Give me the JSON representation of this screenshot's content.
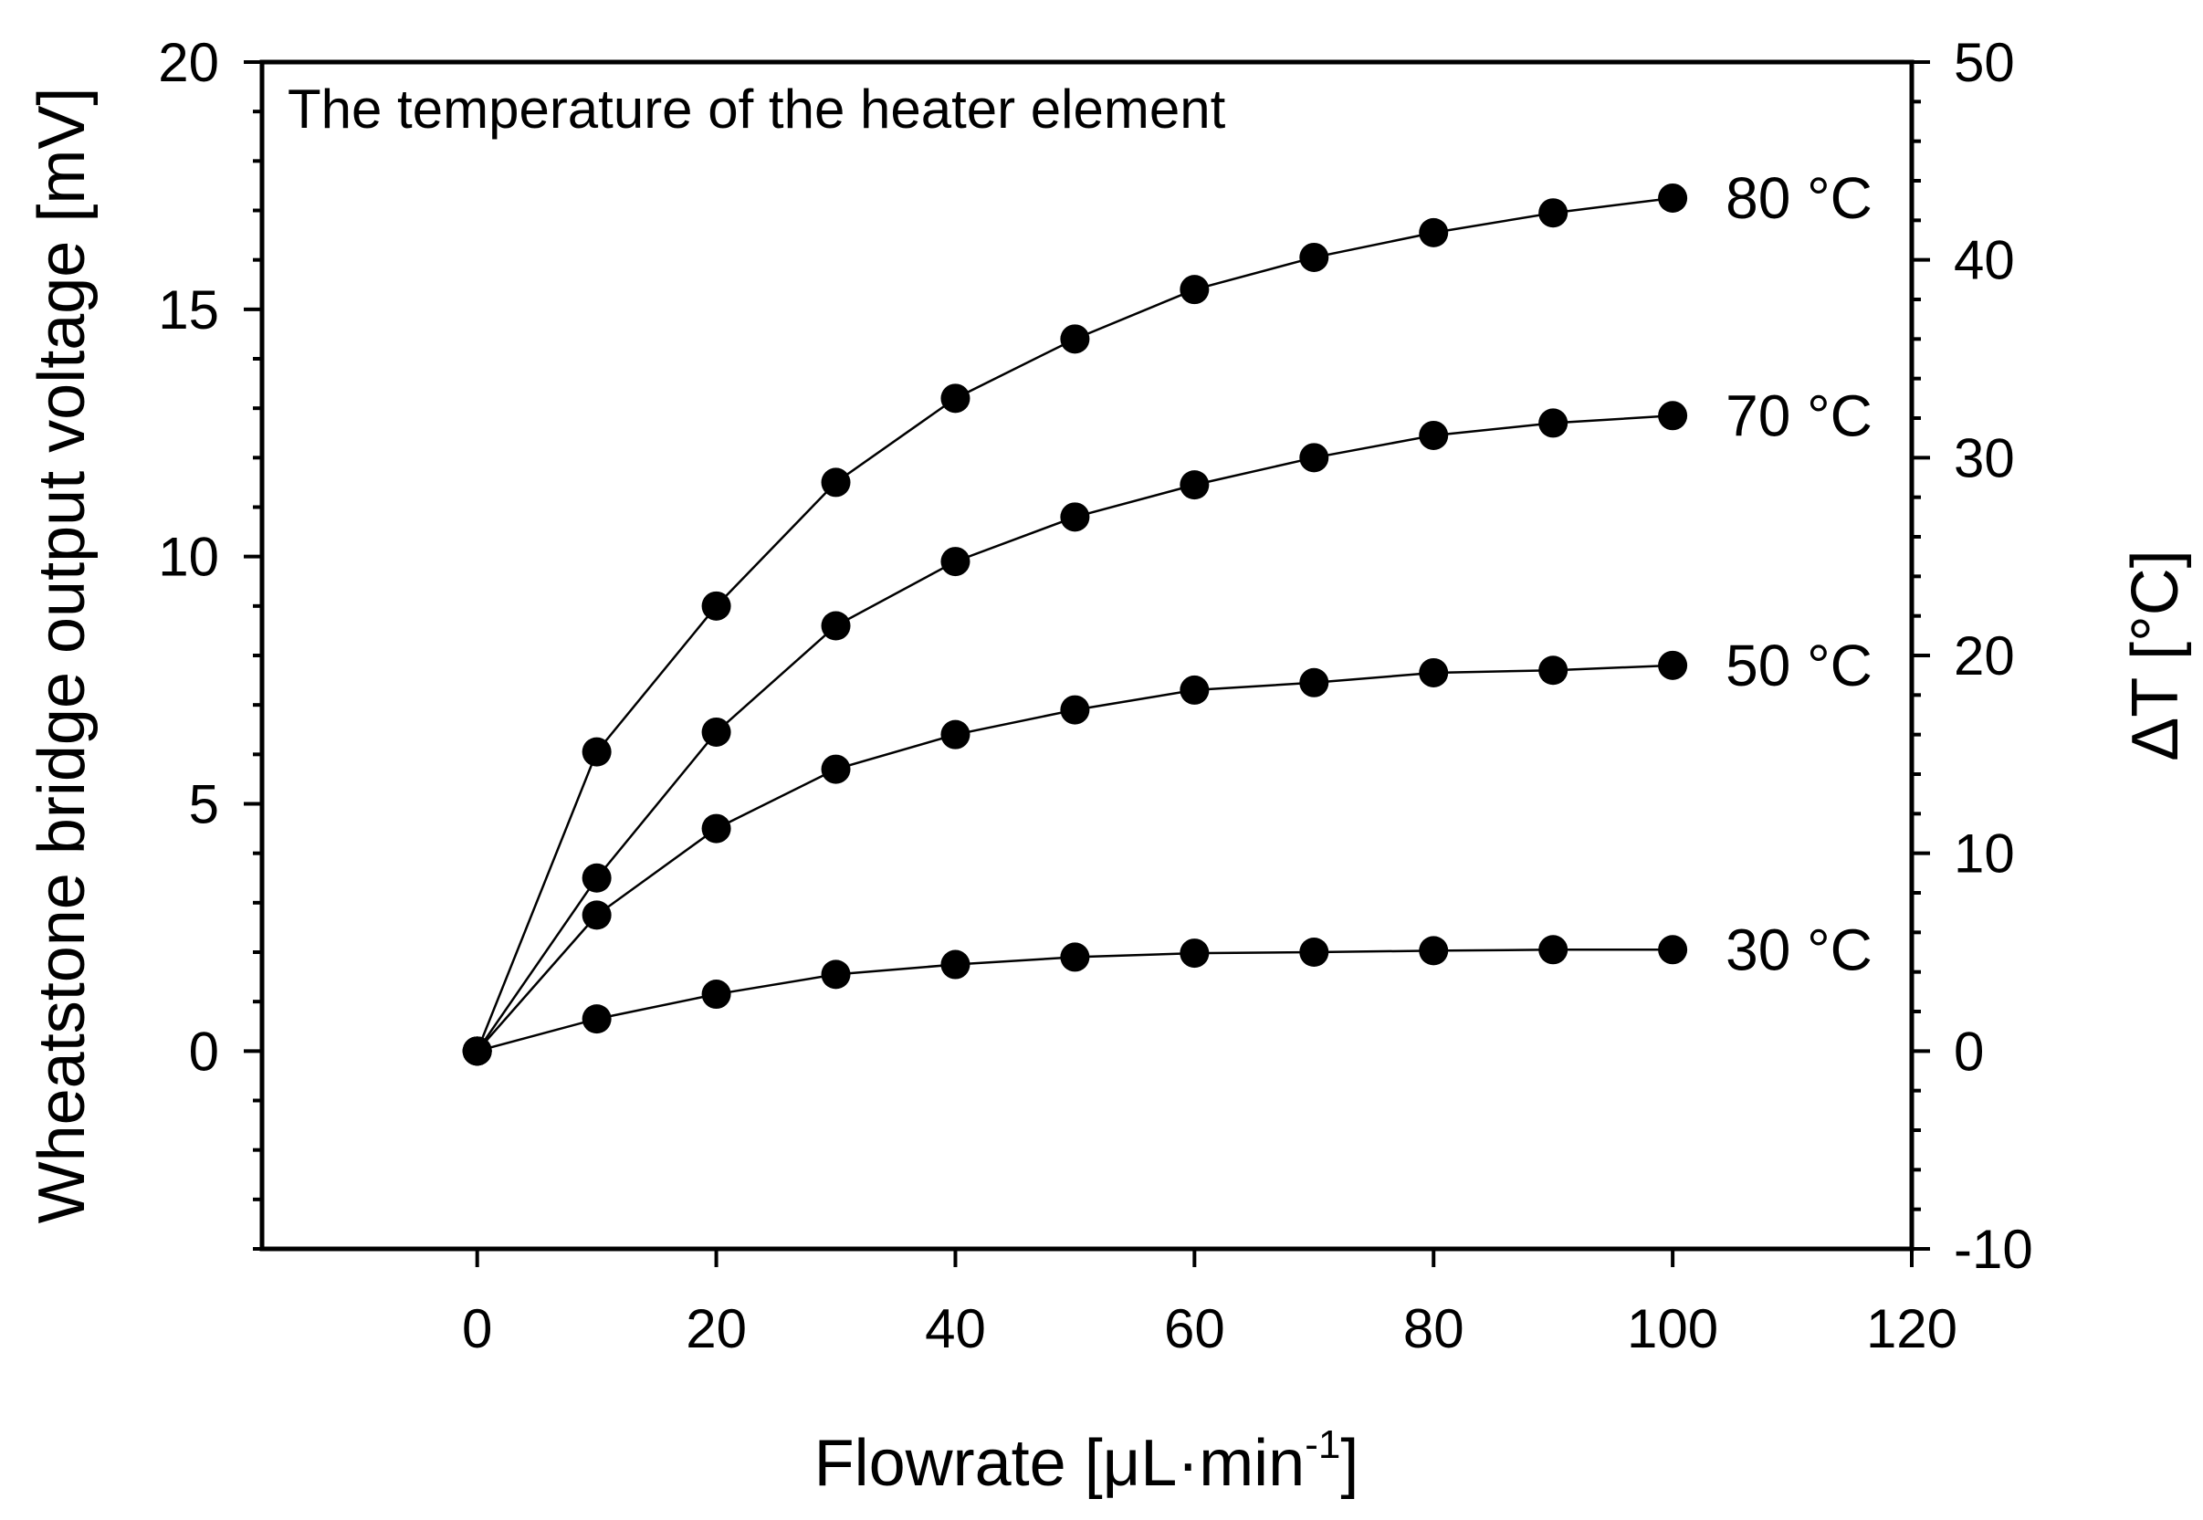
{
  "chart_data": {
    "type": "line",
    "annotation": "The temperature of the heater element",
    "xlabel_main": "Flowrate [",
    "xlabel_mu": "μ",
    "xlabel_unit": "L·min",
    "xlabel_sup": "-1",
    "xlabel_end": "]",
    "ylabel": "Wheatstone bridge output voltage [mV]",
    "y2label": "ΔT [°C]",
    "xlim": [
      -18,
      120
    ],
    "ylim": [
      -4,
      20
    ],
    "y2lim": [
      -10,
      50
    ],
    "x_ticks": [
      0,
      20,
      40,
      60,
      80,
      100,
      120
    ],
    "y_ticks": [
      0,
      5,
      10,
      15,
      20
    ],
    "y2_ticks": [
      -10,
      0,
      10,
      20,
      30,
      40,
      50
    ],
    "grid": false,
    "marker": "filled-circle",
    "line_color": "#000000",
    "x": [
      0,
      10,
      20,
      30,
      40,
      50,
      60,
      70,
      80,
      90,
      100
    ],
    "series": [
      {
        "name": "80 °C",
        "values": [
          0,
          6.05,
          9.0,
          11.5,
          13.2,
          14.4,
          15.4,
          16.05,
          16.55,
          16.95,
          17.25
        ]
      },
      {
        "name": "70 °C",
        "values": [
          0,
          3.5,
          6.45,
          8.6,
          9.9,
          10.8,
          11.45,
          12.0,
          12.45,
          12.7,
          12.85
        ]
      },
      {
        "name": "50 °C",
        "values": [
          0,
          2.75,
          4.5,
          5.7,
          6.4,
          6.9,
          7.3,
          7.45,
          7.65,
          7.7,
          7.8
        ]
      },
      {
        "name": "30 °C",
        "values": [
          0,
          0.65,
          1.15,
          1.55,
          1.75,
          1.9,
          1.98,
          2.0,
          2.03,
          2.05,
          2.05
        ]
      }
    ]
  }
}
